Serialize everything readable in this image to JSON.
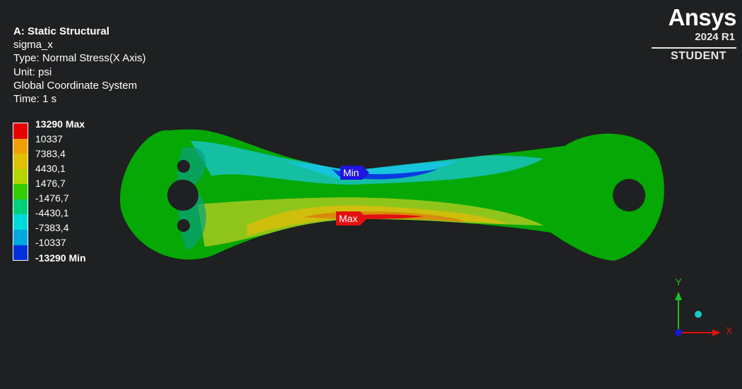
{
  "app": {
    "brand": "Ansys",
    "version": "2024 R1",
    "edition": "STUDENT"
  },
  "result_info": {
    "title": "A: Static Structural",
    "name": "sigma_x",
    "type": "Type: Normal Stress(X Axis)",
    "unit": "Unit: psi",
    "coord_system": "Global Coordinate System",
    "time": "Time: 1 s"
  },
  "legend": {
    "labels": [
      "13290 Max",
      "10337",
      "7383,4",
      "4430,1",
      "1476,7",
      "-1476,7",
      "-4430,1",
      "-7383,4",
      "-10337",
      "-13290 Min"
    ],
    "colors": [
      "#e60000",
      "#f0a000",
      "#e0c000",
      "#b5d400",
      "#33cc00",
      "#00d07a",
      "#00dada",
      "#00a8e0",
      "#0030dc"
    ]
  },
  "probes": {
    "min": "Min",
    "max": "Max"
  },
  "triad": {
    "x": "X",
    "y": "Y"
  },
  "colors": {
    "background": "#1e2021",
    "part_base": "#05a805"
  }
}
